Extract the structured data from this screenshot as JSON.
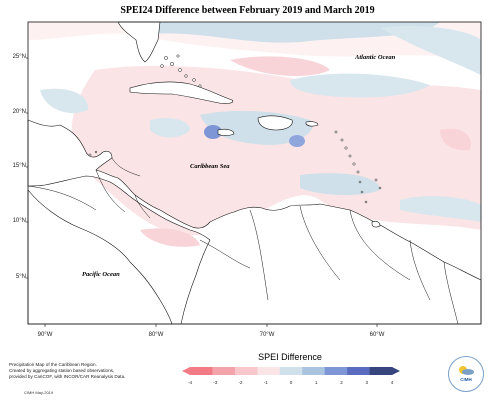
{
  "title": "SPEI24 Difference between February 2019 and March 2019",
  "ocean_labels": {
    "atlantic": "Atlantic Ocean",
    "caribbean": "Caribbean Sea",
    "pacific": "Pacific Ocean"
  },
  "lat_ticks": [
    "25°N",
    "20°N",
    "15°N",
    "10°N",
    "5°N"
  ],
  "lon_ticks": [
    "90°W",
    "80°W",
    "70°W",
    "60°W"
  ],
  "legend": {
    "title": "SPEI Difference",
    "ticks": [
      "-4",
      "-3",
      "-2",
      "-1",
      "0",
      "1",
      "2",
      "3",
      "4"
    ],
    "colors": [
      "#f27b86",
      "#f5a3aa",
      "#f8c7cb",
      "#fbe4e6",
      "#cfe0ea",
      "#a9c4df",
      "#7f96d6",
      "#5a6cc0",
      "#37457e"
    ]
  },
  "footer": {
    "line1": "Precipitation Map of the Caribbean Region.",
    "line2": "Created by aggregating station based observations,",
    "line3": "provided by CariCOF, with INCOR/CAR Reanalysis Data.",
    "credit": "CIMH May-2019"
  },
  "logo": {
    "text": "CIMH"
  }
}
